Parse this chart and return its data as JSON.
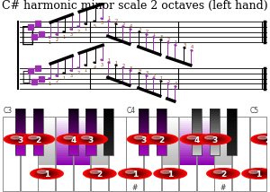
{
  "title": "C# harmonic minor scale 2 octaves (left hand)",
  "title_fontsize": 9,
  "bg_color": "#ffffff",
  "piano_bg": "#e8e8e8",
  "n_white": 15,
  "white_key_color": "#ffffff",
  "black_key_color": "#111111",
  "purple_top": "#7b1fa2",
  "purple_mid": "#9b30b0",
  "gray_top": "#aaaaaa",
  "octave_labels": [
    [
      "C3",
      0
    ],
    [
      "C4",
      7
    ],
    [
      "C5",
      14
    ]
  ],
  "highlighted_white_purple": [
    3,
    4,
    10,
    11
  ],
  "highlighted_white_gray": [
    2,
    5,
    9,
    12
  ],
  "black_pattern": [
    0,
    1,
    3,
    4,
    5
  ],
  "highlighted_black_purple": [
    0,
    1,
    2,
    3,
    5,
    6
  ],
  "highlighted_black_gray": [
    7,
    8,
    10
  ],
  "bk_finger_circles": [
    {
      "bk_idx": 0,
      "finger": "3"
    },
    {
      "bk_idx": 1,
      "finger": "2"
    },
    {
      "bk_idx": 2,
      "finger": "4"
    },
    {
      "bk_idx": 3,
      "finger": "3"
    },
    {
      "bk_idx": 5,
      "finger": "3"
    },
    {
      "bk_idx": 6,
      "finger": "2"
    },
    {
      "bk_idx": 7,
      "finger": "4"
    },
    {
      "bk_idx": 8,
      "finger": "3"
    },
    {
      "bk_idx": 10,
      "finger": "2"
    }
  ],
  "wk_finger_circles": [
    {
      "wk_idx": 2,
      "finger": "1",
      "sharp": false
    },
    {
      "wk_idx": 5,
      "finger": "2",
      "sharp": false
    },
    {
      "wk_idx": 7,
      "finger": "1",
      "sharp": true
    },
    {
      "wk_idx": 9,
      "finger": "1",
      "sharp": false
    },
    {
      "wk_idx": 12,
      "finger": "2",
      "sharp": true
    },
    {
      "wk_idx": 14,
      "finger": "1",
      "sharp": false
    }
  ],
  "sheet_music_placeholder": true,
  "staff_line_color": "#000000",
  "note_color_purple": "#9b30b0",
  "note_color_black": "#000000",
  "fingering_color": "#8B4513"
}
